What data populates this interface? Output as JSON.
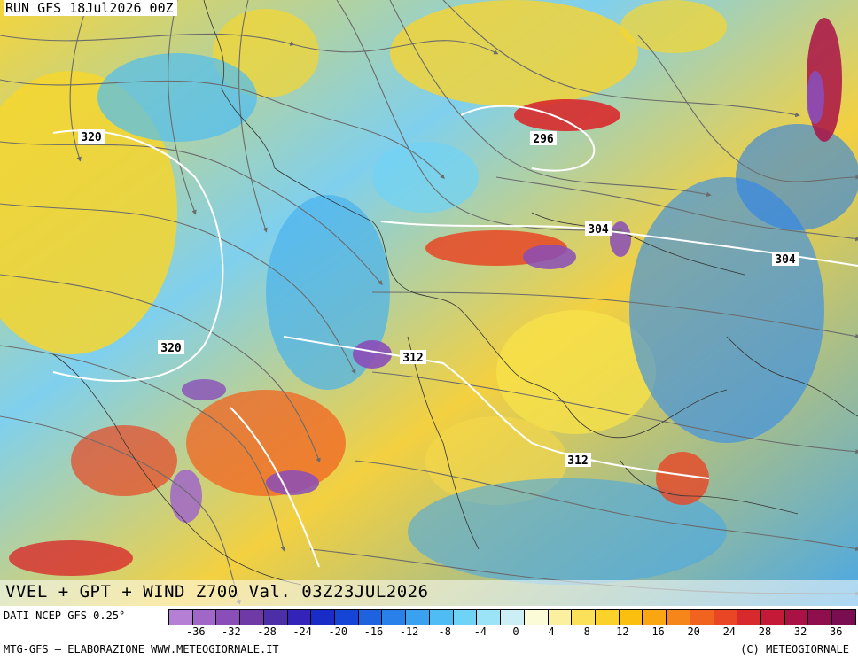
{
  "header": {
    "run_label": "RUN GFS 18Jul2026 00Z",
    "title": "VVEL + GPT + WIND Z700 Val. 03Z23JUL2026"
  },
  "footer": {
    "source": "DATI NCEP GFS 0.25°",
    "credit_left": "MTG-GFS — ELABORAZIONE WWW.METEOGIORNALE.IT",
    "credit_right": "(C) METEOGIORNALE"
  },
  "colorbar": {
    "colors": [
      "#b57fd6",
      "#a066c8",
      "#8a4eb8",
      "#6f3aa6",
      "#4b2ea8",
      "#3323b8",
      "#1a2cc8",
      "#1545d6",
      "#1f62e0",
      "#2a80ea",
      "#3aa0f0",
      "#4fbdf4",
      "#6fd3f6",
      "#9be3f6",
      "#cbeff4",
      "#fbfbd8",
      "#fbf0a0",
      "#fbe15a",
      "#fbd22a",
      "#fbbf10",
      "#f9a612",
      "#f6861a",
      "#f16420",
      "#e84624",
      "#d82a2c",
      "#c41a38",
      "#aa1246",
      "#8e0e4e",
      "#7a0c52"
    ],
    "tick_labels": [
      "-36",
      "-32",
      "-28",
      "-24",
      "-20",
      "-16",
      "-12",
      "-8",
      "-4",
      "0",
      "4",
      "8",
      "12",
      "16",
      "20",
      "24",
      "28",
      "32",
      "36"
    ]
  },
  "map": {
    "contour_labels": [
      {
        "text": "320"
      },
      {
        "text": "320"
      },
      {
        "text": "296"
      },
      {
        "text": "304"
      },
      {
        "text": "304"
      },
      {
        "text": "312"
      },
      {
        "text": "312"
      }
    ]
  }
}
